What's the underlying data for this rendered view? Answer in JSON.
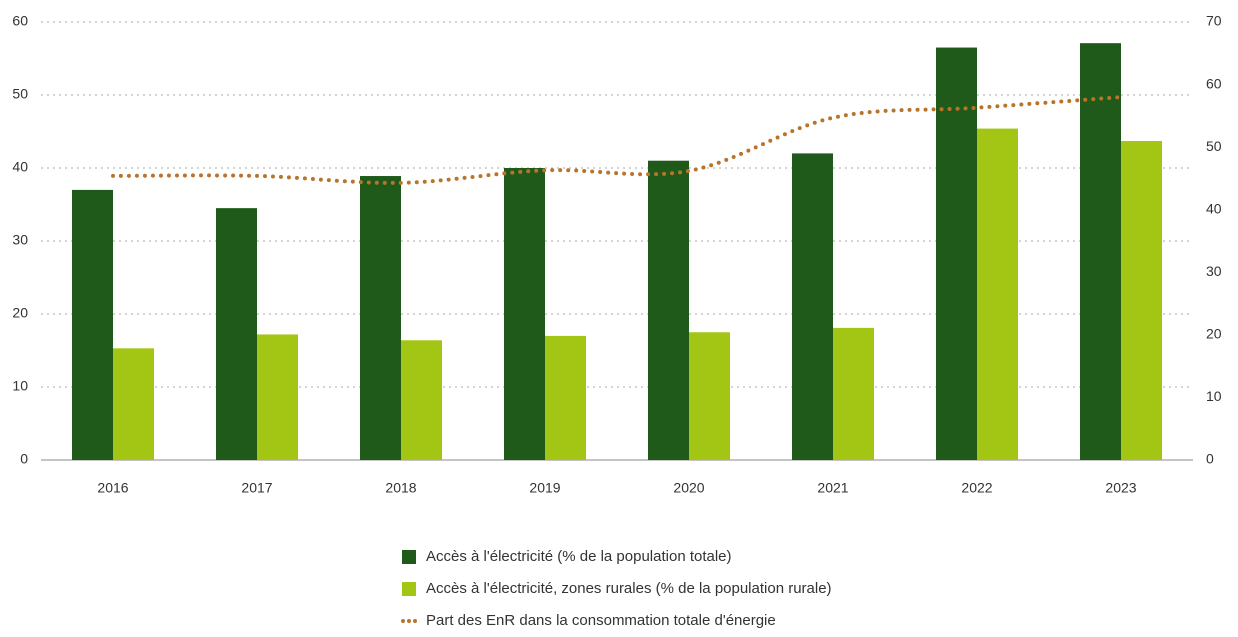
{
  "chart_data": {
    "type": "bar",
    "categories": [
      "2016",
      "2017",
      "2018",
      "2019",
      "2020",
      "2021",
      "2022",
      "2023"
    ],
    "series": [
      {
        "name": "Accès à l'électricité (% de la population totale)",
        "color": "#1f5a1a",
        "values": [
          37,
          34.5,
          38.9,
          40,
          41,
          42,
          56.5,
          57.1
        ]
      },
      {
        "name": "Accès à l'électricité, zones rurales (% de la population rurale)",
        "color": "#a3c614",
        "values": [
          15.3,
          17.2,
          16.4,
          17,
          17.5,
          18.1,
          45.4,
          43.7
        ]
      },
      {
        "name": "Part des EnR dans la consommation totale d'énergie",
        "color": "#b8742a",
        "type": "line",
        "axis": "y2",
        "values": [
          45.4,
          45.4,
          44.3,
          46.3,
          46.2,
          54.7,
          56.3,
          58.0
        ]
      }
    ],
    "ylim": [
      0,
      60
    ],
    "yticks": [
      0,
      10,
      20,
      30,
      40,
      50,
      60
    ],
    "y2lim": [
      0,
      70
    ],
    "y2ticks": [
      0,
      10,
      20,
      30,
      40,
      50,
      60,
      70
    ],
    "grid": true,
    "legend": "bottom"
  }
}
